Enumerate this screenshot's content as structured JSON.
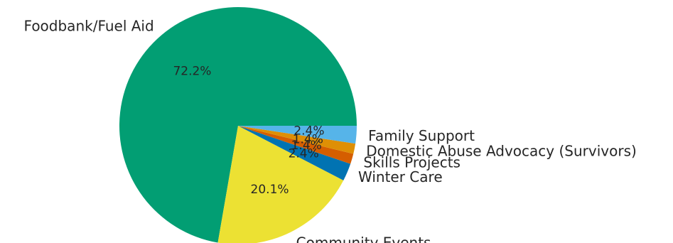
{
  "chart_data": {
    "type": "pie",
    "title": "",
    "slices": [
      {
        "label": "Foodbank/Fuel Aid",
        "value": 72.2,
        "pct_label": "72.2%",
        "color": "#029E73"
      },
      {
        "label": "Community Events",
        "value": 20.1,
        "pct_label": "20.1%",
        "color": "#ECE133"
      },
      {
        "label": "Winter Care",
        "value": 2.4,
        "pct_label": "2.4%",
        "color": "#0173B2"
      },
      {
        "label": "Skills Projects",
        "value": 1.4,
        "pct_label": "1.4%",
        "color": "#D55E00"
      },
      {
        "label": "Domestic Abuse Advocacy (Survivors)",
        "value": 1.4,
        "pct_label": "1.4%",
        "color": "#DE8F05"
      },
      {
        "label": "Family Support",
        "value": 2.4,
        "pct_label": "2.4%",
        "color": "#56B4E9"
      }
    ],
    "start_angle_deg": 0,
    "direction": "counterclockwise",
    "legend": "none"
  }
}
